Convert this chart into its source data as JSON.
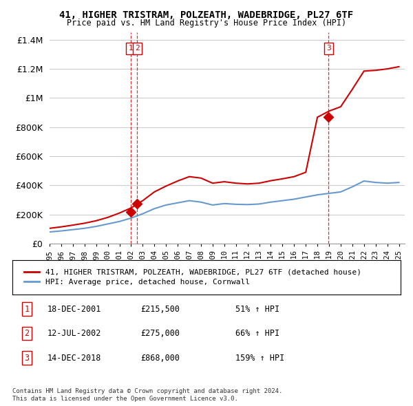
{
  "title": "41, HIGHER TRISTRAM, POLZEATH, WADEBRIDGE, PL27 6TF",
  "subtitle": "Price paid vs. HM Land Registry's House Price Index (HPI)",
  "background_color": "#ffffff",
  "grid_color": "#cccccc",
  "transactions": [
    {
      "num": 1,
      "date_label": "18-DEC-2001",
      "year": 2001.96,
      "price": 215500,
      "hpi_pct": "51%"
    },
    {
      "num": 2,
      "date_label": "12-JUL-2002",
      "year": 2002.53,
      "price": 275000,
      "hpi_pct": "66%"
    },
    {
      "num": 3,
      "date_label": "14-DEC-2018",
      "year": 2018.96,
      "price": 868000,
      "hpi_pct": "159%"
    }
  ],
  "red_line_color": "#cc0000",
  "blue_line_color": "#6699cc",
  "vline_color": "#cc0000",
  "marker_color": "#cc0000",
  "legend_house": "41, HIGHER TRISTRAM, POLZEATH, WADEBRIDGE, PL27 6TF (detached house)",
  "legend_hpi": "HPI: Average price, detached house, Cornwall",
  "footnote1": "Contains HM Land Registry data © Crown copyright and database right 2024.",
  "footnote2": "This data is licensed under the Open Government Licence v3.0.",
  "ylim": [
    0,
    1450000
  ],
  "xlim_start": 1995.0,
  "xlim_end": 2025.5,
  "years": [
    1995,
    1996,
    1997,
    1998,
    1999,
    2000,
    2001,
    2002,
    2003,
    2004,
    2005,
    2006,
    2007,
    2008,
    2009,
    2010,
    2011,
    2012,
    2013,
    2014,
    2015,
    2016,
    2017,
    2018,
    2019,
    2020,
    2021,
    2022,
    2023,
    2024,
    2025
  ],
  "blue_values": [
    80000,
    87000,
    96000,
    105000,
    118000,
    135000,
    152000,
    175000,
    205000,
    240000,
    265000,
    280000,
    295000,
    285000,
    265000,
    275000,
    270000,
    268000,
    272000,
    285000,
    295000,
    305000,
    320000,
    335000,
    345000,
    355000,
    390000,
    430000,
    420000,
    415000,
    420000
  ],
  "red_values": [
    105000,
    115000,
    127000,
    140000,
    157000,
    180000,
    210000,
    245000,
    295000,
    355000,
    395000,
    430000,
    460000,
    450000,
    415000,
    425000,
    415000,
    410000,
    415000,
    432000,
    445000,
    460000,
    490000,
    868000,
    910000,
    940000,
    1060000,
    1185000,
    1190000,
    1200000,
    1215000
  ]
}
